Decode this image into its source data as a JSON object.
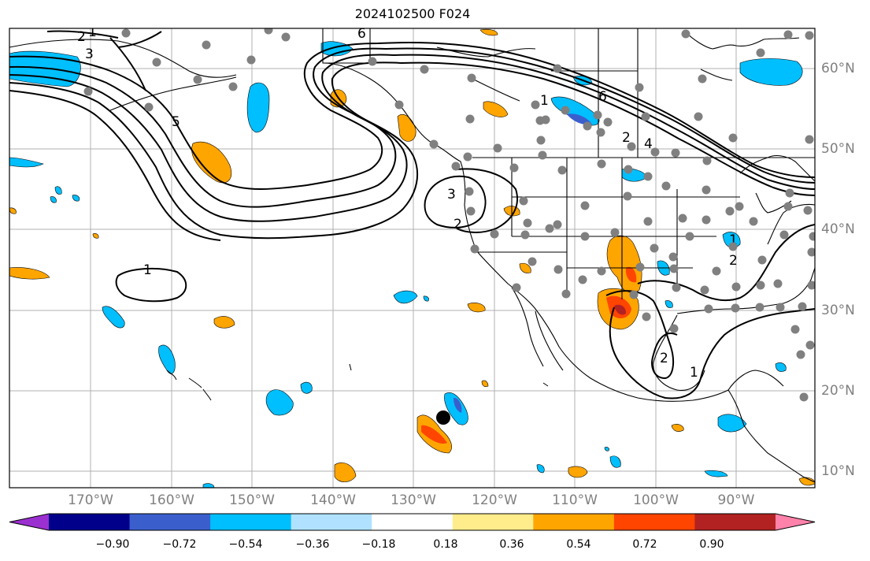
{
  "title": "2024102500 F024",
  "lat_labels": [
    "60°N",
    "50°N",
    "40°N",
    "30°N",
    "20°N",
    "10°N"
  ],
  "lon_labels": [
    "170°W",
    "160°W",
    "150°W",
    "140°W",
    "130°W",
    "120°W",
    "110°W",
    "100°W",
    "90°W"
  ],
  "contour_labels": [
    "1",
    "3",
    "5",
    "6",
    "1",
    "2",
    "1",
    "6",
    "2",
    "4",
    "3",
    "2",
    "1",
    "2",
    "1",
    "2"
  ],
  "colorbar": {
    "tick_labels": [
      "−0.90",
      "−0.72",
      "−0.54",
      "−0.36",
      "−0.18",
      "0.18",
      "0.36",
      "0.54",
      "0.72",
      "0.90"
    ],
    "colors": [
      "#9b30d0",
      "#00008b",
      "#3a5fcd",
      "#00bfff",
      "#b0e2ff",
      "#ffffff",
      "#ffec8b",
      "#ffa500",
      "#ff4500",
      "#b22222",
      "#ff82ab"
    ]
  },
  "colors": {
    "land_outline": "#000000",
    "grid": "#b0b0b0",
    "station_dots": "#808080",
    "contour": "#000000"
  }
}
